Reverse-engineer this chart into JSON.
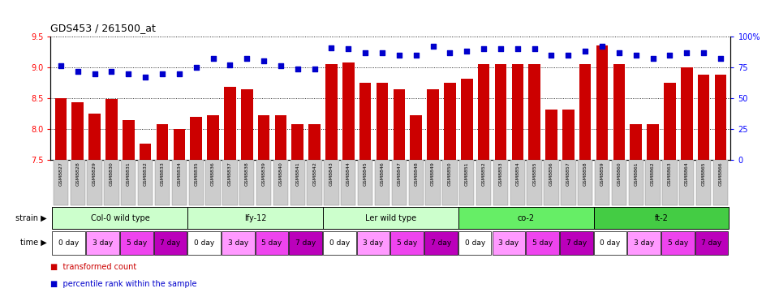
{
  "title": "GDS453 / 261500_at",
  "samples": [
    "GSM8827",
    "GSM8828",
    "GSM8829",
    "GSM8830",
    "GSM8831",
    "GSM8832",
    "GSM8833",
    "GSM8834",
    "GSM8835",
    "GSM8836",
    "GSM8837",
    "GSM8838",
    "GSM8839",
    "GSM8840",
    "GSM8841",
    "GSM8842",
    "GSM8843",
    "GSM8844",
    "GSM8845",
    "GSM8846",
    "GSM8847",
    "GSM8848",
    "GSM8849",
    "GSM8850",
    "GSM8851",
    "GSM8852",
    "GSM8853",
    "GSM8854",
    "GSM8855",
    "GSM8856",
    "GSM8857",
    "GSM8858",
    "GSM8859",
    "GSM8860",
    "GSM8861",
    "GSM8862",
    "GSM8863",
    "GSM8864",
    "GSM8865",
    "GSM8866"
  ],
  "bar_values": [
    8.5,
    8.43,
    8.25,
    8.49,
    8.15,
    7.76,
    8.08,
    8.0,
    8.2,
    8.22,
    8.68,
    8.65,
    8.22,
    8.22,
    8.08,
    8.08,
    9.05,
    9.08,
    8.75,
    8.75,
    8.65,
    8.22,
    8.65,
    8.75,
    8.82,
    9.05,
    9.05,
    9.05,
    9.05,
    8.32,
    8.32,
    9.05,
    9.35,
    9.05,
    8.08,
    8.08,
    8.75,
    9.0,
    8.88,
    8.88
  ],
  "percentile_values": [
    76,
    72,
    70,
    72,
    70,
    67,
    70,
    70,
    75,
    82,
    77,
    82,
    80,
    76,
    74,
    74,
    91,
    90,
    87,
    87,
    85,
    85,
    92,
    87,
    88,
    90,
    90,
    90,
    90,
    85,
    85,
    88,
    92,
    87,
    85,
    82,
    85,
    87,
    87,
    82
  ],
  "strains": [
    {
      "name": "Col-0 wild type",
      "start": 0,
      "end": 8
    },
    {
      "name": "lfy-12",
      "start": 8,
      "end": 16
    },
    {
      "name": "Ler wild type",
      "start": 16,
      "end": 24
    },
    {
      "name": "co-2",
      "start": 24,
      "end": 32
    },
    {
      "name": "ft-2",
      "start": 32,
      "end": 40
    }
  ],
  "strain_colors": [
    "#ccffcc",
    "#ccffcc",
    "#ccffcc",
    "#66ee66",
    "#44cc44"
  ],
  "time_labels": [
    "0 day",
    "3 day",
    "5 day",
    "7 day"
  ],
  "time_colors": [
    "#ffffff",
    "#ff99ff",
    "#ee44ee",
    "#bb00bb"
  ],
  "ylim_left": [
    7.5,
    9.5
  ],
  "ylim_right": [
    0,
    100
  ],
  "yticks_left": [
    7.5,
    8.0,
    8.5,
    9.0,
    9.5
  ],
  "yticks_right": [
    0,
    25,
    50,
    75,
    100
  ],
  "bar_color": "#cc0000",
  "dot_color": "#0000cc",
  "tick_label_bg": "#cccccc",
  "tick_label_border": "#888888"
}
